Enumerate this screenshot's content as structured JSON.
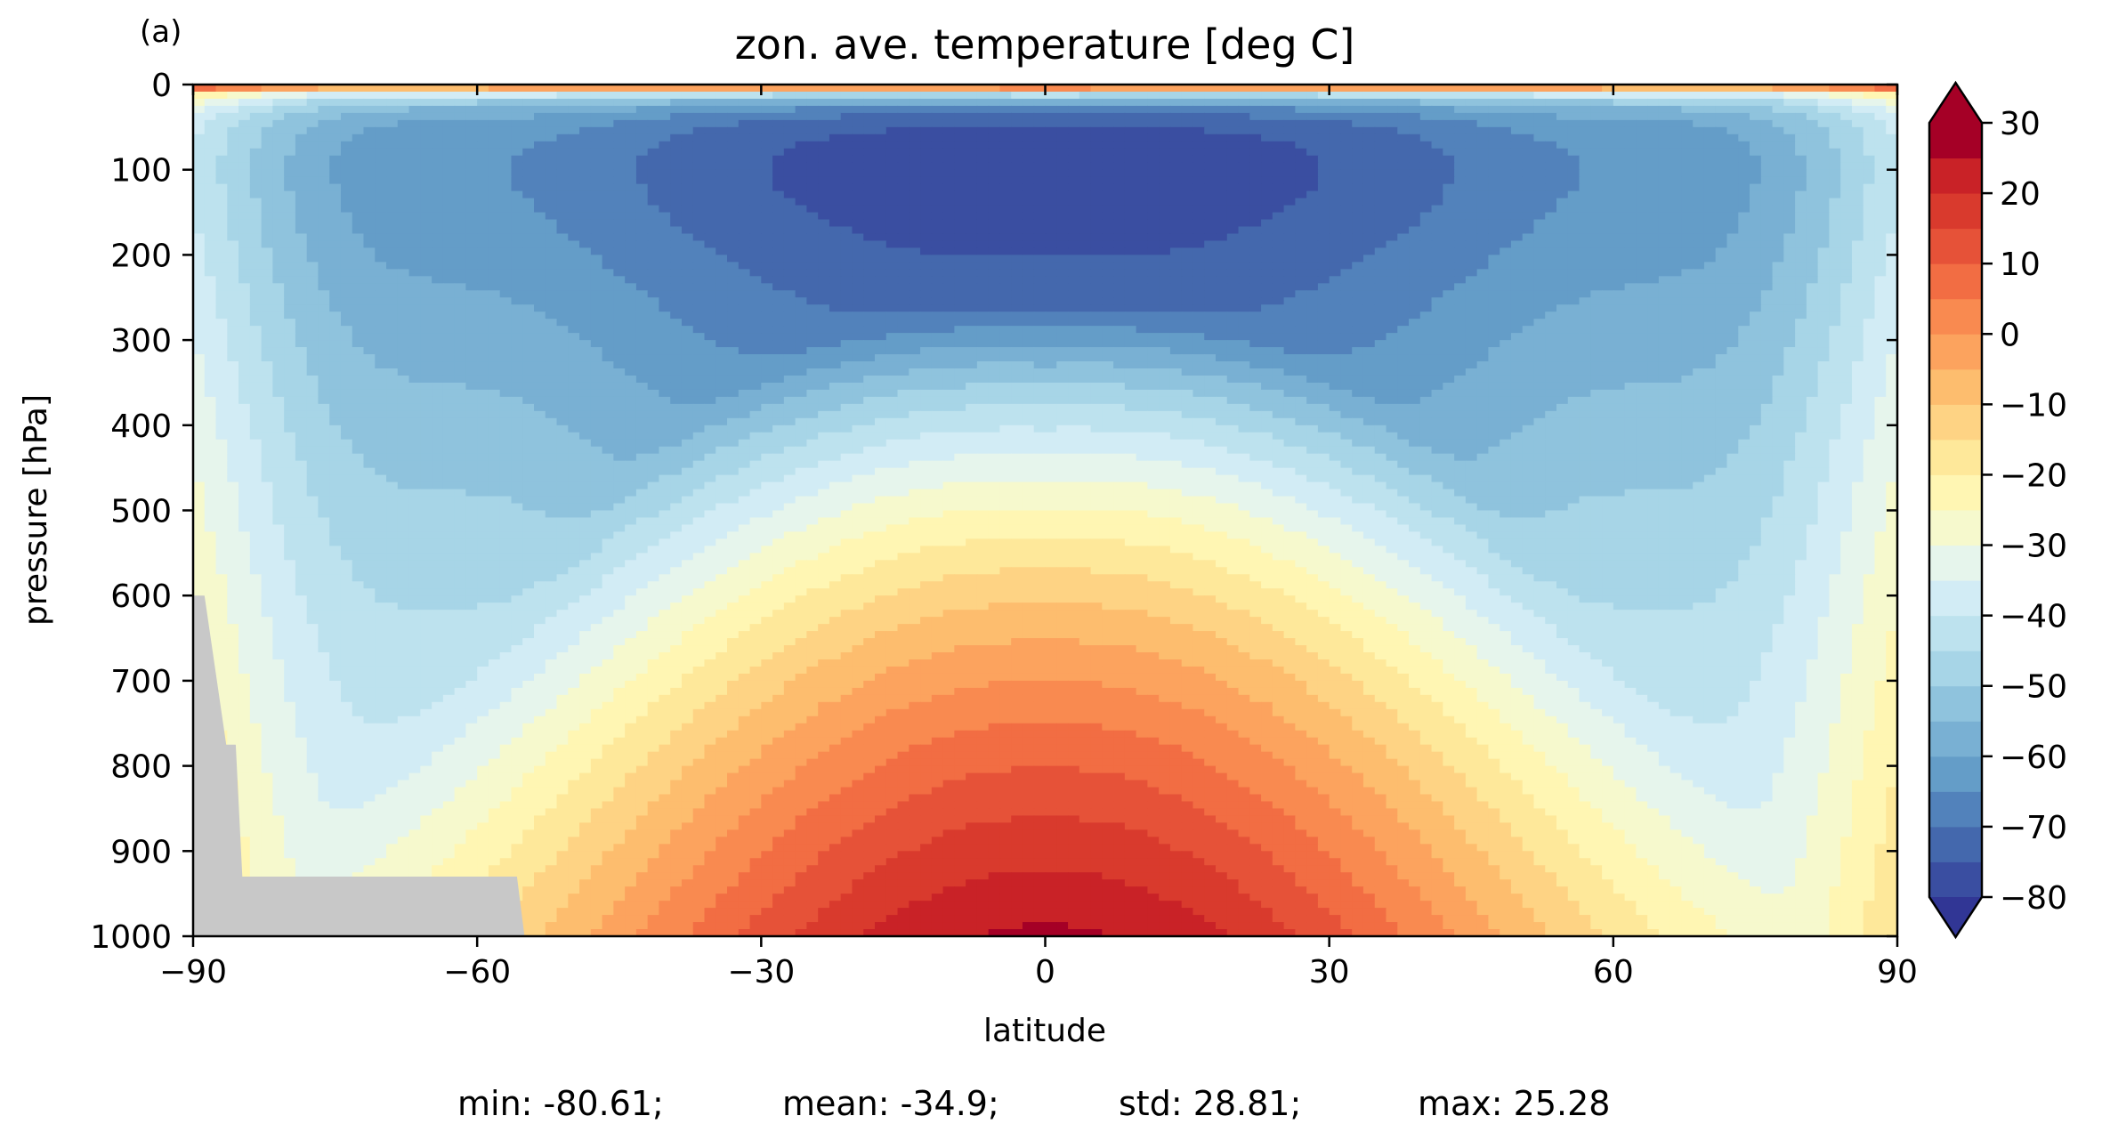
{
  "chart_data": {
    "type": "contour",
    "panel_label": "(a)",
    "title": "zon. ave. temperature [deg C]",
    "xlabel": "latitude",
    "ylabel": "pressure [hPa]",
    "xlim": [
      -90,
      90
    ],
    "ylim": [
      1000,
      0
    ],
    "y_inverted": true,
    "xticks": [
      -90,
      -60,
      -30,
      0,
      30,
      60,
      90
    ],
    "xtick_labels": [
      "−90",
      "−60",
      "−30",
      "0",
      "30",
      "60",
      "90"
    ],
    "yticks": [
      0,
      100,
      200,
      300,
      400,
      500,
      600,
      700,
      800,
      900,
      1000
    ],
    "ytick_labels": [
      "0",
      "100",
      "200",
      "300",
      "400",
      "500",
      "600",
      "700",
      "800",
      "900",
      "1000"
    ],
    "colorbar": {
      "levels": [
        -85,
        -80,
        -75,
        -70,
        -65,
        -60,
        -55,
        -50,
        -45,
        -40,
        -35,
        -30,
        -25,
        -20,
        -15,
        -10,
        -5,
        0,
        5,
        10,
        15,
        20,
        25,
        30,
        35
      ],
      "tick_values": [
        30,
        20,
        10,
        0,
        -10,
        -20,
        -30,
        -40,
        -50,
        -60,
        -70,
        -80
      ],
      "tick_labels": [
        "30",
        "20",
        "10",
        "0",
        "−10",
        "−20",
        "−30",
        "−40",
        "−50",
        "−60",
        "−70",
        "−80"
      ],
      "extend": "both",
      "colors": [
        "#313695",
        "#3a4ea1",
        "#4468ad",
        "#5282bb",
        "#649dc8",
        "#79b0d3",
        "#8fc3dd",
        "#a7d5e7",
        "#bde2ee",
        "#d2ecf5",
        "#e6f5ec",
        "#f6f9cd",
        "#fff6b3",
        "#fee89a",
        "#fed384",
        "#fdbd6e",
        "#fca35e",
        "#f98a50",
        "#f26d43",
        "#e65238",
        "#d93a2d",
        "#c92227",
        "#a50026"
      ]
    },
    "stats": {
      "min": "min: -80.61;",
      "mean": "mean: -34.9;",
      "std": "std: 28.81;",
      "max": "max: 25.28"
    },
    "masked_region": "topography (grey) near -90 to -55 latitude, below ~600-930 hPa"
  }
}
